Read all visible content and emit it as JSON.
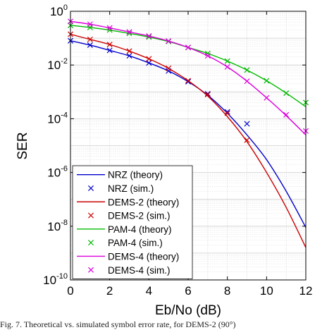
{
  "chart_data": {
    "type": "line",
    "xlabel": "Eb/No (dB)",
    "ylabel": "SER",
    "xlim": [
      0,
      12
    ],
    "ylim": [
      1e-10,
      1
    ],
    "yscale": "log",
    "grid": true,
    "xticks": [
      "0",
      "2",
      "4",
      "6",
      "8",
      "10",
      "12"
    ],
    "yticks": [
      {
        "base": "10",
        "exp": "0",
        "value": 1
      },
      {
        "base": "10",
        "exp": "-2",
        "value": 0.01
      },
      {
        "base": "10",
        "exp": "-4",
        "value": 0.0001
      },
      {
        "base": "10",
        "exp": "-6",
        "value": 1e-06
      },
      {
        "base": "10",
        "exp": "-8",
        "value": 1e-08
      },
      {
        "base": "10",
        "exp": "-10",
        "value": 1e-10
      }
    ],
    "legend_position": "bottom-left",
    "series": [
      {
        "name": "NRZ (theory)",
        "kind": "line",
        "color": "#0000cc",
        "x": [
          0,
          1,
          2,
          3,
          4,
          5,
          6,
          7,
          8,
          9,
          10,
          11,
          12
        ],
        "y": [
          0.08,
          0.055,
          0.035,
          0.022,
          0.012,
          0.006,
          0.0024,
          0.00075,
          0.00016,
          2.5e-05,
          3e-06,
          2e-07,
          9e-09
        ]
      },
      {
        "name": "NRZ (sim.)",
        "kind": "marker",
        "color": "#0000cc",
        "x": [
          0,
          1,
          2,
          3,
          4,
          5,
          6,
          7,
          8,
          9
        ],
        "y": [
          0.08,
          0.055,
          0.035,
          0.022,
          0.012,
          0.006,
          0.0024,
          0.00085,
          0.00018,
          6.5e-05
        ]
      },
      {
        "name": "DEMS-2 (theory)",
        "kind": "line",
        "color": "#cc0000",
        "x": [
          0,
          1,
          2,
          3,
          4,
          5,
          6,
          7,
          8,
          9,
          10,
          11,
          12
        ],
        "y": [
          0.14,
          0.09,
          0.058,
          0.033,
          0.017,
          0.0075,
          0.0026,
          0.0007,
          0.00012,
          1.4e-05,
          1e-06,
          5e-08,
          1.6e-09
        ]
      },
      {
        "name": "DEMS-2 (sim.)",
        "kind": "marker",
        "color": "#cc0000",
        "x": [
          0,
          1,
          2,
          3,
          4,
          5,
          6,
          7,
          8,
          9
        ],
        "y": [
          0.14,
          0.09,
          0.058,
          0.033,
          0.017,
          0.0075,
          0.0026,
          0.0008,
          0.00016,
          1.6e-05
        ]
      },
      {
        "name": "PAM-4 (theory)",
        "kind": "line",
        "color": "#00bb00",
        "x": [
          0,
          1,
          2,
          3,
          4,
          5,
          6,
          7,
          8,
          9,
          10,
          11,
          12
        ],
        "y": [
          0.3,
          0.25,
          0.2,
          0.15,
          0.11,
          0.075,
          0.045,
          0.027,
          0.014,
          0.0065,
          0.0026,
          0.0009,
          0.00028
        ]
      },
      {
        "name": "PAM-4 (sim.)",
        "kind": "marker",
        "color": "#00bb00",
        "x": [
          0,
          1,
          2,
          3,
          4,
          5,
          6,
          7,
          8,
          9,
          10,
          11,
          12
        ],
        "y": [
          0.3,
          0.25,
          0.2,
          0.15,
          0.11,
          0.075,
          0.045,
          0.027,
          0.014,
          0.0065,
          0.0026,
          0.0009,
          0.0004
        ]
      },
      {
        "name": "DEMS-4 (theory)",
        "kind": "line",
        "color": "#dd00dd",
        "x": [
          0,
          1,
          2,
          3,
          4,
          5,
          6,
          7,
          8,
          9,
          10,
          11,
          12
        ],
        "y": [
          0.42,
          0.33,
          0.24,
          0.17,
          0.12,
          0.078,
          0.045,
          0.022,
          0.0085,
          0.0025,
          0.0006,
          0.00013,
          2.5e-05
        ]
      },
      {
        "name": "DEMS-4 (sim.)",
        "kind": "marker",
        "color": "#dd00dd",
        "x": [
          0,
          1,
          2,
          3,
          4,
          5,
          6,
          7,
          8,
          9,
          10,
          11,
          12
        ],
        "y": [
          0.42,
          0.33,
          0.24,
          0.17,
          0.12,
          0.078,
          0.045,
          0.022,
          0.0085,
          0.0025,
          0.0006,
          0.00014,
          3.5e-05
        ]
      }
    ]
  },
  "caption": "Fig. 7.    Theoretical vs. simulated symbol error rate, for DEMS-2 (90°)"
}
